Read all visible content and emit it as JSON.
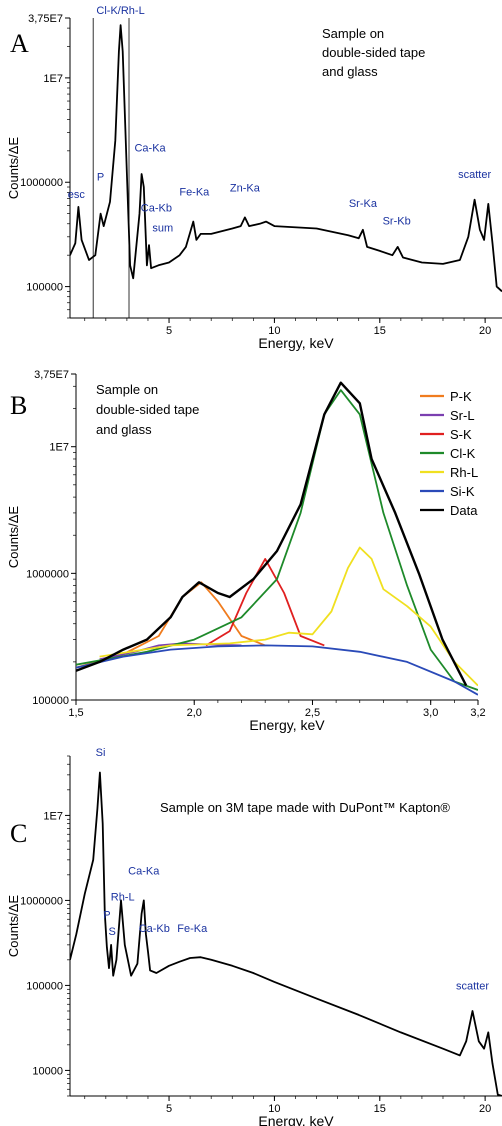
{
  "chart_data": [
    {
      "panel": "A",
      "type": "line",
      "yscale": "log",
      "xlabel": "Energy, keV",
      "ylabel": "Counts/ΔE",
      "xlim": [
        0.3,
        20.8
      ],
      "ylim": [
        50000,
        37500000
      ],
      "xticks": [
        {
          "v": 5,
          "label": "5"
        },
        {
          "v": 10,
          "label": "10"
        },
        {
          "v": 15,
          "label": "15"
        },
        {
          "v": 20,
          "label": "20"
        }
      ],
      "yticks": [
        {
          "v": 100000,
          "label": "100000"
        },
        {
          "v": 1000000,
          "label": "1000000"
        },
        {
          "v": 10000000,
          "label": "1E7"
        },
        {
          "v": 37500000,
          "label": "3,75E7"
        }
      ],
      "annotation": "Sample on\ndouble-sided tape\nand glass",
      "vlines": [
        1.4,
        3.1
      ],
      "peaks": [
        {
          "label": "esc",
          "x": 0.6,
          "y": 650000
        },
        {
          "label": "P",
          "x": 1.75,
          "y": 950000
        },
        {
          "label": "Cl-K/Rh-L",
          "x": 2.7,
          "y": 45000000
        },
        {
          "label": "Ca-Ka",
          "x": 4.1,
          "y": 1800000
        },
        {
          "label": "Ca-Kb",
          "x": 4.4,
          "y": 480000
        },
        {
          "label": "sum",
          "x": 4.7,
          "y": 310000
        },
        {
          "label": "Fe-Ka",
          "x": 6.2,
          "y": 680000
        },
        {
          "label": "Zn-Ka",
          "x": 8.6,
          "y": 750000
        },
        {
          "label": "Sr-Ka",
          "x": 14.2,
          "y": 530000
        },
        {
          "label": "Sr-Kb",
          "x": 15.8,
          "y": 360000
        },
        {
          "label": "scatter",
          "x": 19.5,
          "y": 1000000
        }
      ],
      "series": [
        {
          "color": "#000000",
          "points": [
            [
              0.3,
              200000
            ],
            [
              0.55,
              260000
            ],
            [
              0.7,
              580000
            ],
            [
              0.85,
              280000
            ],
            [
              1.2,
              180000
            ],
            [
              1.5,
              200000
            ],
            [
              1.75,
              500000
            ],
            [
              1.9,
              380000
            ],
            [
              2.2,
              650000
            ],
            [
              2.45,
              2500000
            ],
            [
              2.62,
              18000000
            ],
            [
              2.7,
              32000000
            ],
            [
              2.8,
              18000000
            ],
            [
              3.0,
              1200000
            ],
            [
              3.15,
              160000
            ],
            [
              3.3,
              120000
            ],
            [
              3.6,
              500000
            ],
            [
              3.7,
              1200000
            ],
            [
              3.8,
              900000
            ],
            [
              3.95,
              160000
            ],
            [
              4.05,
              250000
            ],
            [
              4.15,
              150000
            ],
            [
              4.5,
              160000
            ],
            [
              5.0,
              170000
            ],
            [
              5.5,
              200000
            ],
            [
              5.8,
              240000
            ],
            [
              6.15,
              420000
            ],
            [
              6.3,
              280000
            ],
            [
              6.5,
              320000
            ],
            [
              7.0,
              320000
            ],
            [
              8.0,
              360000
            ],
            [
              8.4,
              380000
            ],
            [
              8.6,
              460000
            ],
            [
              8.8,
              380000
            ],
            [
              9.3,
              400000
            ],
            [
              9.6,
              420000
            ],
            [
              10.0,
              380000
            ],
            [
              12.0,
              360000
            ],
            [
              13.5,
              310000
            ],
            [
              14.0,
              290000
            ],
            [
              14.2,
              350000
            ],
            [
              14.4,
              240000
            ],
            [
              15.0,
              220000
            ],
            [
              15.6,
              200000
            ],
            [
              15.85,
              240000
            ],
            [
              16.1,
              190000
            ],
            [
              17.0,
              170000
            ],
            [
              18.0,
              165000
            ],
            [
              18.8,
              180000
            ],
            [
              19.2,
              300000
            ],
            [
              19.5,
              680000
            ],
            [
              19.75,
              350000
            ],
            [
              19.95,
              280000
            ],
            [
              20.15,
              620000
            ],
            [
              20.35,
              260000
            ],
            [
              20.55,
              100000
            ],
            [
              20.8,
              90000
            ]
          ]
        }
      ]
    },
    {
      "panel": "B",
      "type": "line",
      "yscale": "log",
      "xlabel": "Energy, keV",
      "ylabel": "Counts/ΔE",
      "xlim": [
        1.5,
        3.2
      ],
      "ylim": [
        100000,
        37500000
      ],
      "xticks": [
        {
          "v": 1.5,
          "label": "1,5"
        },
        {
          "v": 2.0,
          "label": "2,0"
        },
        {
          "v": 2.5,
          "label": "2,5"
        },
        {
          "v": 3.0,
          "label": "3,0"
        },
        {
          "v": 3.2,
          "label": "3,2"
        }
      ],
      "yticks": [
        {
          "v": 100000,
          "label": "100000"
        },
        {
          "v": 1000000,
          "label": "1000000"
        },
        {
          "v": 10000000,
          "label": "1E7"
        },
        {
          "v": 37500000,
          "label": "3,75E7"
        }
      ],
      "annotation": "Sample on\ndouble-sided tape\nand glass",
      "series": [
        {
          "name": "P-K",
          "color": "#f07c1e",
          "points": [
            [
              1.5,
              180000
            ],
            [
              1.7,
              230000
            ],
            [
              1.85,
              320000
            ],
            [
              1.95,
              650000
            ],
            [
              2.03,
              850000
            ],
            [
              2.1,
              600000
            ],
            [
              2.2,
              320000
            ],
            [
              2.3,
              270000
            ]
          ]
        },
        {
          "name": "Sr-L",
          "color": "#7b3fb0",
          "points": [
            [
              1.6,
              210000
            ],
            [
              1.75,
              240000
            ],
            [
              1.85,
              270000
            ],
            [
              1.95,
              280000
            ],
            [
              2.05,
              275000
            ],
            [
              2.2,
              270000
            ]
          ]
        },
        {
          "name": "S-K",
          "color": "#e02020",
          "points": [
            [
              2.05,
              270000
            ],
            [
              2.15,
              350000
            ],
            [
              2.22,
              700000
            ],
            [
              2.3,
              1300000
            ],
            [
              2.38,
              700000
            ],
            [
              2.45,
              320000
            ],
            [
              2.55,
              270000
            ]
          ]
        },
        {
          "name": "Cl-K",
          "color": "#1e8a2a",
          "points": [
            [
              1.5,
              190000
            ],
            [
              1.8,
              240000
            ],
            [
              2.0,
              300000
            ],
            [
              2.2,
              450000
            ],
            [
              2.35,
              900000
            ],
            [
              2.45,
              3000000
            ],
            [
              2.55,
              18000000
            ],
            [
              2.62,
              28000000
            ],
            [
              2.7,
              18000000
            ],
            [
              2.8,
              3000000
            ],
            [
              2.9,
              800000
            ],
            [
              3.0,
              250000
            ],
            [
              3.1,
              140000
            ],
            [
              3.2,
              120000
            ]
          ]
        },
        {
          "name": "Rh-L",
          "color": "#f0e020",
          "points": [
            [
              1.6,
              220000
            ],
            [
              1.9,
              270000
            ],
            [
              2.15,
              280000
            ],
            [
              2.3,
              300000
            ],
            [
              2.4,
              340000
            ],
            [
              2.5,
              330000
            ],
            [
              2.58,
              500000
            ],
            [
              2.65,
              1100000
            ],
            [
              2.7,
              1600000
            ],
            [
              2.75,
              1300000
            ],
            [
              2.8,
              750000
            ],
            [
              2.9,
              550000
            ],
            [
              3.0,
              380000
            ],
            [
              3.1,
              200000
            ],
            [
              3.2,
              130000
            ]
          ]
        },
        {
          "name": "Si-K",
          "color": "#2a4ab8",
          "points": [
            [
              1.5,
              180000
            ],
            [
              1.7,
              220000
            ],
            [
              1.9,
              250000
            ],
            [
              2.1,
              265000
            ],
            [
              2.3,
              270000
            ],
            [
              2.5,
              265000
            ],
            [
              2.7,
              240000
            ],
            [
              2.9,
              200000
            ],
            [
              3.1,
              140000
            ],
            [
              3.2,
              110000
            ]
          ]
        },
        {
          "name": "Data",
          "color": "#000000",
          "points": [
            [
              1.5,
              170000
            ],
            [
              1.6,
              200000
            ],
            [
              1.7,
              250000
            ],
            [
              1.8,
              300000
            ],
            [
              1.9,
              450000
            ],
            [
              1.95,
              650000
            ],
            [
              2.02,
              850000
            ],
            [
              2.1,
              700000
            ],
            [
              2.15,
              650000
            ],
            [
              2.25,
              900000
            ],
            [
              2.35,
              1500000
            ],
            [
              2.45,
              3500000
            ],
            [
              2.55,
              18000000
            ],
            [
              2.62,
              32000000
            ],
            [
              2.7,
              22000000
            ],
            [
              2.75,
              8000000
            ],
            [
              2.85,
              3000000
            ],
            [
              2.95,
              1000000
            ],
            [
              3.05,
              300000
            ],
            [
              3.15,
              130000
            ]
          ]
        }
      ]
    },
    {
      "panel": "C",
      "type": "line",
      "yscale": "log",
      "xlabel": "Energy, keV",
      "ylabel": "Counts/ΔE",
      "xlim": [
        0.3,
        20.8
      ],
      "ylim": [
        5000,
        50000000
      ],
      "xticks": [
        {
          "v": 5,
          "label": "5"
        },
        {
          "v": 10,
          "label": "10"
        },
        {
          "v": 15,
          "label": "15"
        },
        {
          "v": 20,
          "label": "20"
        }
      ],
      "yticks": [
        {
          "v": 10000,
          "label": "10000"
        },
        {
          "v": 100000,
          "label": "100000"
        },
        {
          "v": 1000000,
          "label": "1000000"
        },
        {
          "v": 10000000,
          "label": "1E7"
        }
      ],
      "annotation": "Sample on 3M tape made with DuPont™ Kapton®",
      "peaks": [
        {
          "label": "Si",
          "x": 1.75,
          "y": 45000000
        },
        {
          "label": "P",
          "x": 2.05,
          "y": 550000
        },
        {
          "label": "S",
          "x": 2.3,
          "y": 350000
        },
        {
          "label": "Rh-L",
          "x": 2.8,
          "y": 900000
        },
        {
          "label": "Ca-Ka",
          "x": 3.8,
          "y": 1800000
        },
        {
          "label": "Ca-Kb",
          "x": 4.3,
          "y": 380000
        },
        {
          "label": "Fe-Ka",
          "x": 6.1,
          "y": 380000
        },
        {
          "label": "scatter",
          "x": 19.4,
          "y": 80000
        }
      ],
      "series": [
        {
          "color": "#000000",
          "points": [
            [
              0.3,
              200000
            ],
            [
              0.6,
              400000
            ],
            [
              1.0,
              1200000
            ],
            [
              1.4,
              3000000
            ],
            [
              1.6,
              12000000
            ],
            [
              1.72,
              32000000
            ],
            [
              1.85,
              8000000
            ],
            [
              1.95,
              700000
            ],
            [
              2.05,
              280000
            ],
            [
              2.15,
              160000
            ],
            [
              2.25,
              300000
            ],
            [
              2.35,
              130000
            ],
            [
              2.5,
              200000
            ],
            [
              2.72,
              1000000
            ],
            [
              2.9,
              300000
            ],
            [
              3.2,
              130000
            ],
            [
              3.5,
              180000
            ],
            [
              3.7,
              700000
            ],
            [
              3.8,
              1000000
            ],
            [
              3.9,
              400000
            ],
            [
              4.0,
              250000
            ],
            [
              4.1,
              150000
            ],
            [
              4.4,
              140000
            ],
            [
              5.0,
              170000
            ],
            [
              5.5,
              190000
            ],
            [
              6.0,
              210000
            ],
            [
              6.5,
              215000
            ],
            [
              7.0,
              200000
            ],
            [
              8.0,
              170000
            ],
            [
              9.0,
              140000
            ],
            [
              10.0,
              110000
            ],
            [
              12.0,
              70000
            ],
            [
              14.0,
              45000
            ],
            [
              16.0,
              28000
            ],
            [
              18.0,
              18000
            ],
            [
              18.8,
              15000
            ],
            [
              19.1,
              22000
            ],
            [
              19.4,
              50000
            ],
            [
              19.7,
              22000
            ],
            [
              19.95,
              18000
            ],
            [
              20.15,
              28000
            ],
            [
              20.35,
              12000
            ],
            [
              20.6,
              5200
            ],
            [
              20.8,
              5000
            ]
          ]
        }
      ]
    }
  ]
}
